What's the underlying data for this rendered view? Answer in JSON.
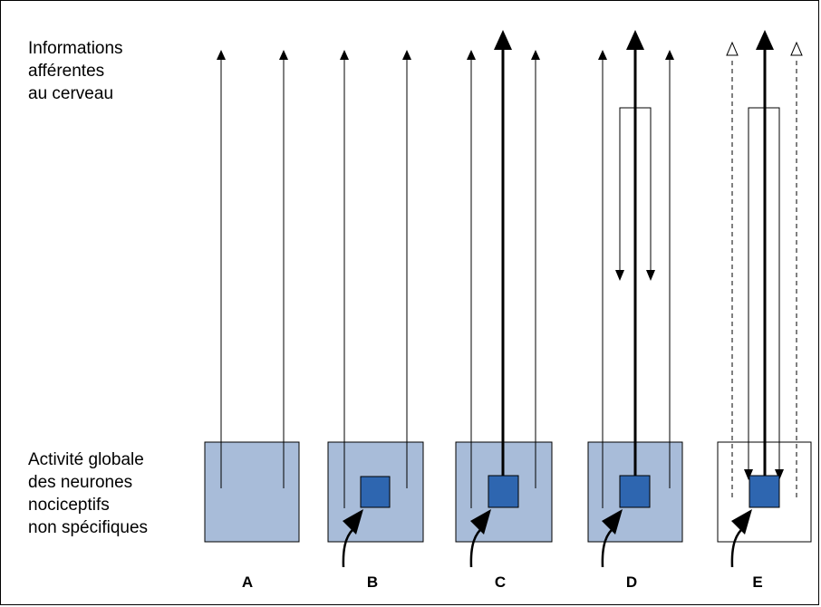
{
  "labels": {
    "top": "Informations\nafférentes\nau cerveau",
    "bottom": "Activité globale\ndes neurones\nnociceptifs\nnon spécifiques"
  },
  "columns": [
    "A",
    "B",
    "C",
    "D",
    "E"
  ],
  "colors": {
    "box_fill": "#a8bcd9",
    "box_fill_none": "#ffffff",
    "small_box": "#2e66b0",
    "line": "#000000"
  }
}
